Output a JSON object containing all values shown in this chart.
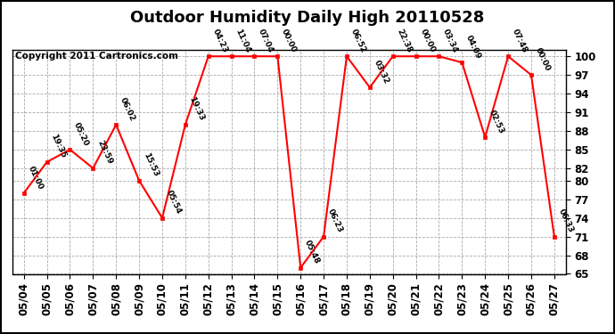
{
  "title": "Outdoor Humidity Daily High 20110528",
  "copyright": "Copyright 2011 Cartronics.com",
  "points": [
    {
      "x": 0,
      "date": "05/04",
      "value": 78,
      "label": "01:00"
    },
    {
      "x": 1,
      "date": "05/05",
      "value": 83,
      "label": "19:35"
    },
    {
      "x": 2,
      "date": "05/06",
      "value": 85,
      "label": "05:20"
    },
    {
      "x": 3,
      "date": "05/07",
      "value": 82,
      "label": "23:59"
    },
    {
      "x": 4,
      "date": "05/08",
      "value": 89,
      "label": "06:02"
    },
    {
      "x": 5,
      "date": "05/09",
      "value": 80,
      "label": "15:53"
    },
    {
      "x": 6,
      "date": "05/10",
      "value": 74,
      "label": "05:54"
    },
    {
      "x": 7,
      "date": "05/11",
      "value": 89,
      "label": "19:33"
    },
    {
      "x": 8,
      "date": "05/12",
      "value": 100,
      "label": "04:23"
    },
    {
      "x": 9,
      "date": "05/13",
      "value": 100,
      "label": "11:04"
    },
    {
      "x": 10,
      "date": "05/14",
      "value": 100,
      "label": "07:04"
    },
    {
      "x": 11,
      "date": "05/15",
      "value": 100,
      "label": "00:00"
    },
    {
      "x": 12,
      "date": "05/16",
      "value": 66,
      "label": "05:48"
    },
    {
      "x": 13,
      "date": "05/17",
      "value": 71,
      "label": "06:23"
    },
    {
      "x": 14,
      "date": "05/18",
      "value": 100,
      "label": "06:52"
    },
    {
      "x": 15,
      "date": "05/19",
      "value": 95,
      "label": "03:32"
    },
    {
      "x": 16,
      "date": "05/20",
      "value": 100,
      "label": "22:38"
    },
    {
      "x": 17,
      "date": "05/21",
      "value": 100,
      "label": "00:00"
    },
    {
      "x": 18,
      "date": "05/22",
      "value": 100,
      "label": "03:34"
    },
    {
      "x": 19,
      "date": "05/23",
      "value": 99,
      "label": "04:09"
    },
    {
      "x": 20,
      "date": "05/24",
      "value": 87,
      "label": "02:53"
    },
    {
      "x": 21,
      "date": "05/25",
      "value": 100,
      "label": "07:48"
    },
    {
      "x": 22,
      "date": "05/26",
      "value": 97,
      "label": "00:00"
    },
    {
      "x": 23,
      "date": "05/27",
      "value": 71,
      "label": "06:33"
    }
  ],
  "ylim": [
    65,
    101
  ],
  "yticks": [
    65,
    68,
    71,
    74,
    77,
    80,
    82,
    85,
    88,
    91,
    94,
    97,
    100
  ],
  "line_color": "red",
  "marker_color": "red",
  "bg_color": "white",
  "grid_color": "#aaaaaa",
  "title_fontsize": 13,
  "copyright_fontsize": 7.5,
  "label_fontsize": 6.5,
  "tick_fontsize": 8.5
}
